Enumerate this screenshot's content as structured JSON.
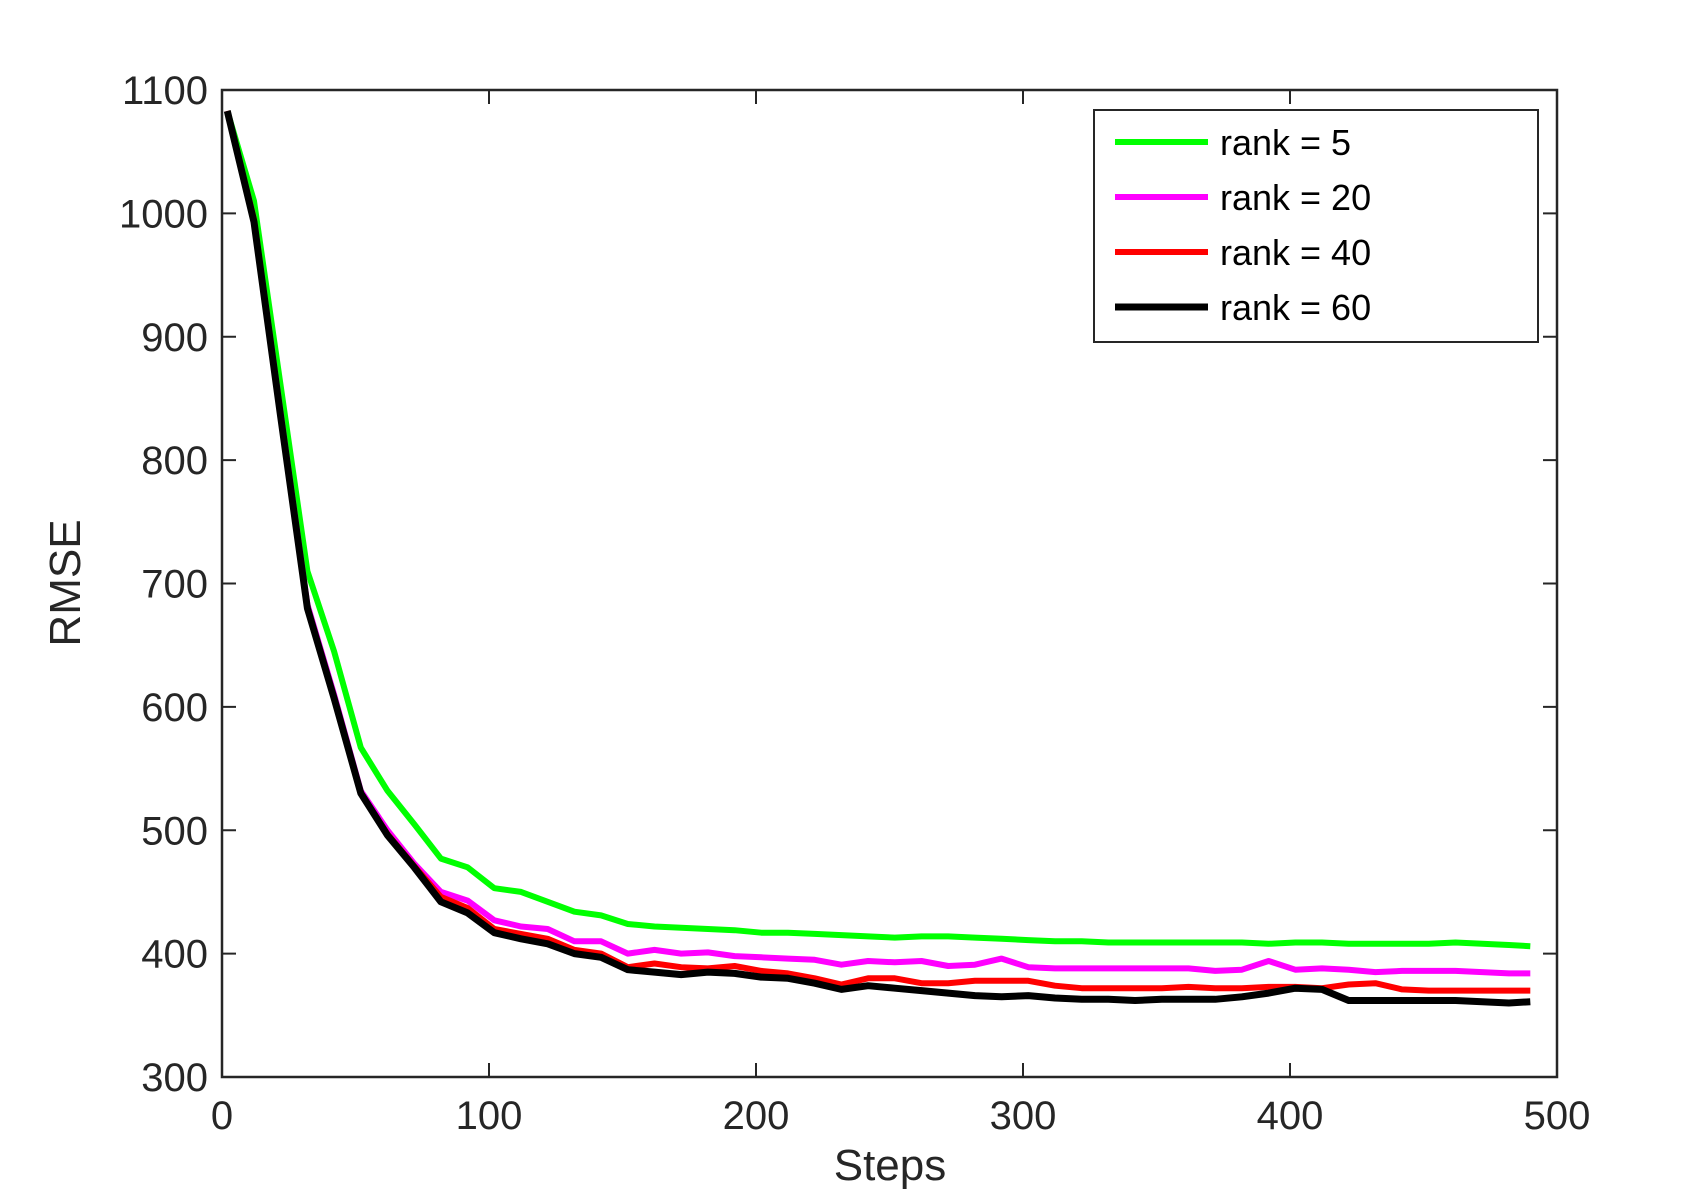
{
  "chart_data": {
    "type": "line",
    "title": "",
    "xlabel": "Steps",
    "ylabel": "RMSE",
    "xlim": [
      0,
      500
    ],
    "ylim": [
      300,
      1100
    ],
    "xticks": [
      0,
      100,
      200,
      300,
      400,
      500
    ],
    "yticks": [
      300,
      400,
      500,
      600,
      700,
      800,
      900,
      1000,
      1100
    ],
    "xtick_labels": [
      "0",
      "100",
      "200",
      "300",
      "400",
      "500"
    ],
    "ytick_labels": [
      "300",
      "400",
      "500",
      "600",
      "700",
      "800",
      "900",
      "1000",
      "1100"
    ],
    "grid": false,
    "legend_position": "top-right",
    "x": [
      2,
      12,
      22,
      32,
      42,
      52,
      62,
      72,
      82,
      92,
      102,
      112,
      122,
      132,
      142,
      152,
      162,
      172,
      182,
      192,
      202,
      212,
      222,
      232,
      242,
      252,
      262,
      272,
      282,
      292,
      302,
      312,
      322,
      332,
      342,
      352,
      362,
      372,
      382,
      392,
      402,
      412,
      422,
      432,
      442,
      452,
      462,
      472,
      482,
      490
    ],
    "series": [
      {
        "name": "rank = 5",
        "color": "#00ff00",
        "values": [
          1083,
          1010,
          860,
          710,
          645,
          567,
          532,
          505,
          477,
          470,
          453,
          450,
          442,
          434,
          431,
          424,
          422,
          421,
          420,
          419,
          417,
          417,
          416,
          415,
          414,
          413,
          414,
          414,
          413,
          412,
          411,
          410,
          410,
          409,
          409,
          409,
          409,
          409,
          409,
          408,
          409,
          409,
          408,
          408,
          408,
          408,
          409,
          408,
          407,
          406
        ]
      },
      {
        "name": "rank = 20",
        "color": "#ff00ff",
        "values": [
          1083,
          995,
          838,
          683,
          610,
          532,
          500,
          473,
          450,
          443,
          427,
          422,
          420,
          410,
          410,
          400,
          403,
          400,
          401,
          398,
          397,
          396,
          395,
          391,
          394,
          393,
          394,
          390,
          391,
          396,
          389,
          388,
          388,
          388,
          388,
          388,
          388,
          386,
          387,
          394,
          387,
          388,
          387,
          385,
          386,
          386,
          386,
          385,
          384,
          384
        ]
      },
      {
        "name": "rank = 40",
        "color": "#ff0000",
        "values": [
          1083,
          995,
          835,
          680,
          607,
          530,
          497,
          471,
          446,
          437,
          420,
          416,
          412,
          403,
          400,
          389,
          392,
          389,
          388,
          390,
          386,
          384,
          380,
          375,
          380,
          380,
          376,
          376,
          378,
          378,
          378,
          374,
          372,
          372,
          372,
          372,
          373,
          372,
          372,
          373,
          373,
          372,
          375,
          376,
          371,
          370,
          370,
          370,
          370,
          370
        ]
      },
      {
        "name": "rank = 60",
        "color": "#000000",
        "values": [
          1083,
          993,
          835,
          680,
          607,
          530,
          496,
          470,
          442,
          433,
          417,
          412,
          408,
          400,
          397,
          387,
          385,
          383,
          385,
          384,
          381,
          380,
          376,
          371,
          374,
          372,
          370,
          368,
          366,
          365,
          366,
          364,
          363,
          363,
          362,
          363,
          363,
          363,
          365,
          368,
          372,
          371,
          362,
          362,
          362,
          362,
          362,
          361,
          360,
          361
        ]
      }
    ]
  }
}
